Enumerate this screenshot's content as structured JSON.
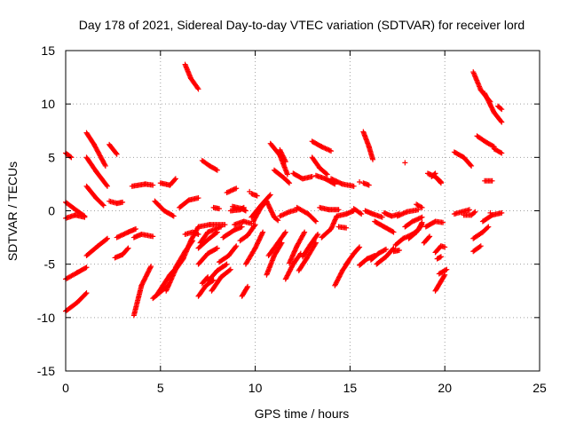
{
  "chart_data": {
    "type": "scatter",
    "title": "Day 178 of 2021, Sidereal Day-to-day VTEC variation (SDTVAR) for receiver lord",
    "xlabel": "GPS time / hours",
    "ylabel": "SDTVAR / TECUs",
    "xlim": [
      0,
      25
    ],
    "ylim": [
      -15,
      15
    ],
    "xticks": [
      0,
      5,
      10,
      15,
      20,
      25
    ],
    "yticks": [
      -15,
      -10,
      -5,
      0,
      5,
      10,
      15
    ],
    "grid": true,
    "marker": "+",
    "series_color": "#ff0000",
    "tracks": [
      {
        "x": [
          0.0,
          0.3
        ],
        "y": [
          5.4,
          5.0
        ]
      },
      {
        "x": [
          0.0,
          0.6,
          1.0
        ],
        "y": [
          0.8,
          0.0,
          -0.5
        ]
      },
      {
        "x": [
          0.0,
          0.5,
          1.0
        ],
        "y": [
          -0.7,
          -0.4,
          -0.6
        ]
      },
      {
        "x": [
          0.0,
          0.6,
          1.1
        ],
        "y": [
          -6.4,
          -5.8,
          -5.3
        ]
      },
      {
        "x": [
          0.0,
          0.6,
          1.1
        ],
        "y": [
          -9.4,
          -8.6,
          -7.7
        ]
      },
      {
        "x": [
          1.1,
          1.5,
          2.1
        ],
        "y": [
          7.3,
          6.2,
          4.2
        ]
      },
      {
        "x": [
          1.1,
          1.6,
          2.2
        ],
        "y": [
          5.0,
          3.7,
          2.3
        ]
      },
      {
        "x": [
          1.1,
          1.6,
          2.0
        ],
        "y": [
          2.3,
          1.2,
          0.5
        ]
      },
      {
        "x": [
          1.1,
          1.7,
          2.2
        ],
        "y": [
          -4.2,
          -3.3,
          -2.6
        ]
      },
      {
        "x": [
          2.3,
          2.7
        ],
        "y": [
          6.2,
          5.3
        ]
      },
      {
        "x": [
          2.3,
          2.7,
          3.0
        ],
        "y": [
          0.9,
          0.7,
          0.8
        ]
      },
      {
        "x": [
          2.6,
          3.0,
          3.3
        ],
        "y": [
          -4.4,
          -4.1,
          -3.5
        ]
      },
      {
        "x": [
          2.7,
          3.3,
          3.7
        ],
        "y": [
          -2.5,
          -2.0,
          -1.7
        ]
      },
      {
        "x": [
          3.5,
          4.2,
          4.6
        ],
        "y": [
          2.3,
          2.5,
          2.4
        ]
      },
      {
        "x": [
          3.6,
          4.0,
          4.6
        ],
        "y": [
          -2.5,
          -2.2,
          -2.4
        ]
      },
      {
        "x": [
          3.6,
          4.0,
          4.5
        ],
        "y": [
          -9.8,
          -7.0,
          -5.2
        ]
      },
      {
        "x": [
          4.6,
          5.0,
          5.4
        ],
        "y": [
          -8.2,
          -7.6,
          -7.0
        ]
      },
      {
        "x": [
          4.7,
          5.2,
          5.7
        ],
        "y": [
          0.9,
          0.0,
          -0.5
        ]
      },
      {
        "x": [
          4.8,
          5.5,
          5.8
        ],
        "y": [
          -7.9,
          -6.0,
          -5.4
        ]
      },
      {
        "x": [
          5.0,
          5.5,
          5.8
        ],
        "y": [
          2.6,
          2.4,
          3.0
        ]
      },
      {
        "x": [
          5.3,
          5.8,
          6.2
        ],
        "y": [
          -7.5,
          -5.5,
          -4.5
        ]
      },
      {
        "x": [
          5.8,
          6.3,
          6.7
        ],
        "y": [
          -5.3,
          -3.8,
          -2.8
        ]
      },
      {
        "x": [
          6.0,
          6.5,
          7.0
        ],
        "y": [
          0.3,
          1.0,
          1.2
        ]
      },
      {
        "x": [
          6.2,
          6.6,
          7.0
        ],
        "y": [
          -4.5,
          -2.8,
          -1.5
        ]
      },
      {
        "x": [
          6.3,
          6.7,
          7.0
        ],
        "y": [
          -2.2,
          -2.0,
          -2.2
        ]
      },
      {
        "x": [
          6.3,
          6.6,
          7.0
        ],
        "y": [
          13.7,
          12.4,
          11.4
        ]
      },
      {
        "x": [
          7.0,
          7.5,
          8.0
        ],
        "y": [
          -5.0,
          -4.0,
          -3.5
        ]
      },
      {
        "x": [
          7.0,
          7.5,
          8.0
        ],
        "y": [
          -3.5,
          -2.7,
          -2.0
        ]
      },
      {
        "x": [
          7.0,
          7.4,
          7.8
        ],
        "y": [
          -8.0,
          -7.0,
          -6.5
        ]
      },
      {
        "x": [
          7.1,
          7.5,
          8.2
        ],
        "y": [
          -3.0,
          -2.0,
          -1.5
        ]
      },
      {
        "x": [
          7.2,
          7.6,
          8.0
        ],
        "y": [
          4.7,
          4.2,
          3.8
        ]
      },
      {
        "x": [
          7.0,
          7.6,
          8.4
        ],
        "y": [
          -1.5,
          -1.3,
          -1.3
        ]
      },
      {
        "x": [
          7.2,
          7.5
        ],
        "y": [
          -6.8,
          -6.2
        ]
      },
      {
        "x": [
          7.5,
          8.0,
          8.5
        ],
        "y": [
          -6.6,
          -5.6,
          -5.0
        ]
      },
      {
        "x": [
          7.7,
          8.2,
          8.7
        ],
        "y": [
          -7.5,
          -6.2,
          -5.5
        ]
      },
      {
        "x": [
          7.8,
          8.1
        ],
        "y": [
          0.3,
          0.2
        ]
      },
      {
        "x": [
          8.1,
          8.6,
          9.0
        ],
        "y": [
          -4.8,
          -4.2,
          -3.3
        ]
      },
      {
        "x": [
          8.5,
          9.0
        ],
        "y": [
          1.7,
          2.1
        ]
      },
      {
        "x": [
          8.3,
          8.9,
          9.3
        ],
        "y": [
          -2.5,
          -1.8,
          -1.5
        ]
      },
      {
        "x": [
          8.7,
          9.2,
          9.4
        ],
        "y": [
          0.0,
          0.1,
          0.3
        ]
      },
      {
        "x": [
          8.8,
          9.3,
          9.5
        ],
        "y": [
          0.4,
          0.2,
          0.0
        ]
      },
      {
        "x": [
          8.9,
          9.4,
          9.8
        ],
        "y": [
          -1.3,
          -1.0,
          -1.2
        ]
      },
      {
        "x": [
          9.2,
          9.6,
          10.0
        ],
        "y": [
          -2.8,
          -2.3,
          -1.3
        ]
      },
      {
        "x": [
          9.3,
          9.6
        ],
        "y": [
          -8.0,
          -7.1
        ]
      },
      {
        "x": [
          9.5,
          10.0,
          10.4
        ],
        "y": [
          -5.0,
          -3.5,
          -2.0
        ]
      },
      {
        "x": [
          9.8,
          10.1
        ],
        "y": [
          1.6,
          1.4
        ]
      },
      {
        "x": [
          9.8,
          10.3,
          10.8
        ],
        "y": [
          -0.6,
          0.5,
          1.5
        ]
      },
      {
        "x": [
          9.9,
          10.3,
          10.6
        ],
        "y": [
          -1.0,
          0.3,
          0.9
        ]
      },
      {
        "x": [
          10.6,
          11.0,
          11.2
        ],
        "y": [
          0.9,
          -0.6,
          -0.9
        ]
      },
      {
        "x": [
          10.6,
          11.0,
          11.4
        ],
        "y": [
          -6.0,
          -4.2,
          -3.0
        ]
      },
      {
        "x": [
          10.7,
          11.2,
          11.6
        ],
        "y": [
          -4.2,
          -3.0,
          -2.0
        ]
      },
      {
        "x": [
          10.8,
          11.3,
          11.7
        ],
        "y": [
          6.3,
          5.2,
          3.4
        ]
      },
      {
        "x": [
          11.0,
          11.5,
          11.8
        ],
        "y": [
          3.8,
          3.1,
          2.6
        ]
      },
      {
        "x": [
          11.3,
          11.6
        ],
        "y": [
          5.7,
          4.6
        ]
      },
      {
        "x": [
          11.3,
          11.8,
          12.2
        ],
        "y": [
          -0.5,
          -0.1,
          0.1
        ]
      },
      {
        "x": [
          11.6,
          12.0,
          12.4
        ],
        "y": [
          -6.4,
          -5.0,
          -4.0
        ]
      },
      {
        "x": [
          11.8,
          12.2,
          12.6
        ],
        "y": [
          -4.9,
          -3.3,
          -2.0
        ]
      },
      {
        "x": [
          12.0,
          12.5,
          13.0
        ],
        "y": [
          3.5,
          3.0,
          3.2
        ]
      },
      {
        "x": [
          12.2,
          12.8,
          13.2
        ],
        "y": [
          0.3,
          -0.3,
          -1.0
        ]
      },
      {
        "x": [
          12.3,
          12.7,
          13.2
        ],
        "y": [
          -5.6,
          -4.5,
          -3.0
        ]
      },
      {
        "x": [
          12.5,
          12.9,
          13.3
        ],
        "y": [
          -4.3,
          -3.2,
          -2.2
        ]
      },
      {
        "x": [
          13.0,
          13.5,
          14.0
        ],
        "y": [
          6.5,
          6.0,
          5.6
        ]
      },
      {
        "x": [
          13.0,
          13.4,
          13.8
        ],
        "y": [
          5.0,
          4.0,
          3.4
        ]
      },
      {
        "x": [
          13.2,
          13.7,
          14.2
        ],
        "y": [
          3.3,
          3.0,
          2.5
        ]
      },
      {
        "x": [
          13.4,
          13.9,
          14.4
        ],
        "y": [
          0.3,
          0.1,
          0.1
        ]
      },
      {
        "x": [
          13.5,
          14.0,
          14.3
        ],
        "y": [
          -2.5,
          -1.7,
          -0.5
        ]
      },
      {
        "x": [
          14.0,
          14.6,
          15.2
        ],
        "y": [
          3.0,
          2.5,
          2.3
        ]
      },
      {
        "x": [
          14.3,
          14.8,
          15.2
        ],
        "y": [
          -0.5,
          -0.3,
          0.0
        ]
      },
      {
        "x": [
          14.4,
          14.8
        ],
        "y": [
          -1.5,
          -1.6
        ]
      },
      {
        "x": [
          14.2,
          14.6,
          14.9
        ],
        "y": [
          -7.0,
          -5.6,
          -4.8
        ]
      },
      {
        "x": [
          14.8,
          15.2,
          15.5
        ],
        "y": [
          -5.0,
          -4.0,
          -3.4
        ]
      },
      {
        "x": [
          15.2,
          15.6
        ],
        "y": [
          0.2,
          -0.3
        ]
      },
      {
        "x": [
          15.5,
          15.9,
          16.3
        ],
        "y": [
          -5.1,
          -4.5,
          -4.2
        ]
      },
      {
        "x": [
          15.7,
          16.0,
          16.2
        ],
        "y": [
          7.4,
          6.0,
          4.8
        ]
      },
      {
        "x": [
          15.7,
          16.0
        ],
        "y": [
          2.6,
          2.4
        ]
      },
      {
        "x": [
          15.8,
          16.2,
          16.7
        ],
        "y": [
          0.0,
          -0.3,
          -0.6
        ]
      },
      {
        "x": [
          16.1,
          16.5,
          16.9
        ],
        "y": [
          -4.6,
          -4.0,
          -3.6
        ]
      },
      {
        "x": [
          16.3,
          16.8,
          17.3
        ],
        "y": [
          -1.0,
          -1.5,
          -2.0
        ]
      },
      {
        "x": [
          16.4,
          16.9,
          17.3
        ],
        "y": [
          -5.0,
          -4.3,
          -3.5
        ]
      },
      {
        "x": [
          16.8,
          17.2,
          17.6
        ],
        "y": [
          -0.2,
          -0.5,
          -0.3
        ]
      },
      {
        "x": [
          17.3,
          17.6
        ],
        "y": [
          -3.8,
          -3.7
        ]
      },
      {
        "x": [
          17.4,
          17.8,
          18.3
        ],
        "y": [
          -3.2,
          -2.6,
          -2.2
        ]
      },
      {
        "x": [
          17.5,
          18.0,
          18.6
        ],
        "y": [
          -0.5,
          -0.1,
          0.1
        ]
      },
      {
        "x": [
          17.9,
          18.3,
          18.8
        ],
        "y": [
          -1.5,
          -1.0,
          -0.6
        ]
      },
      {
        "x": [
          18.1,
          18.5,
          18.8
        ],
        "y": [
          -2.6,
          -2.0,
          -1.3
        ]
      },
      {
        "x": [
          18.2,
          18.6,
          18.8
        ],
        "y": [
          -2.3,
          -1.8,
          -1.1
        ]
      },
      {
        "x": [
          18.5,
          18.8
        ],
        "y": [
          0.6,
          0.3
        ]
      },
      {
        "x": [
          18.9,
          19.2
        ],
        "y": [
          -3.0,
          -2.4
        ]
      },
      {
        "x": [
          19.0,
          19.5,
          19.9
        ],
        "y": [
          -1.5,
          -1.0,
          -1.1
        ]
      },
      {
        "x": [
          19.1,
          19.5,
          19.8
        ],
        "y": [
          3.5,
          3.2,
          2.7
        ]
      },
      {
        "x": [
          19.3,
          19.5
        ],
        "y": [
          3.2,
          3.5
        ]
      },
      {
        "x": [
          19.5,
          19.8
        ],
        "y": [
          3.2,
          2.6
        ]
      },
      {
        "x": [
          19.5,
          19.8,
          20.0
        ],
        "y": [
          -3.9,
          -3.3,
          -3.4
        ]
      },
      {
        "x": [
          19.5,
          19.8,
          20.0
        ],
        "y": [
          -7.5,
          -6.6,
          -6.0
        ]
      },
      {
        "x": [
          19.6,
          19.8
        ],
        "y": [
          -4.5,
          -4.3
        ]
      },
      {
        "x": [
          19.7,
          20.1
        ],
        "y": [
          -5.9,
          -5.5
        ]
      },
      {
        "x": [
          20.5,
          21.0,
          21.4
        ],
        "y": [
          5.5,
          5.0,
          4.2
        ]
      },
      {
        "x": [
          20.5,
          20.9,
          21.3
        ],
        "y": [
          -0.3,
          -0.1,
          0.1
        ]
      },
      {
        "x": [
          21.0,
          21.4,
          21.6
        ],
        "y": [
          -0.4,
          -0.4,
          -0.1
        ]
      },
      {
        "x": [
          21.5,
          22.0,
          22.3
        ],
        "y": [
          -2.6,
          -2.0,
          -1.5
        ]
      },
      {
        "x": [
          21.5,
          21.9,
          22.4
        ],
        "y": [
          13.0,
          11.3,
          10.2
        ]
      },
      {
        "x": [
          21.7,
          22.2,
          22.6
        ],
        "y": [
          7.0,
          6.4,
          6.0
        ]
      },
      {
        "x": [
          21.5,
          21.9
        ],
        "y": [
          -3.8,
          -3.3
        ]
      },
      {
        "x": [
          22.0,
          22.5,
          23.0
        ],
        "y": [
          -1.0,
          -0.4,
          -0.2
        ]
      },
      {
        "x": [
          22.1,
          22.6,
          23.0
        ],
        "y": [
          11.0,
          9.2,
          8.3
        ]
      },
      {
        "x": [
          22.1,
          22.5
        ],
        "y": [
          2.8,
          2.8
        ]
      },
      {
        "x": [
          22.6,
          23.0
        ],
        "y": [
          5.8,
          5.4
        ]
      },
      {
        "x": [
          22.8,
          23.0
        ],
        "y": [
          9.8,
          9.5
        ]
      }
    ],
    "isolated_points": [
      {
        "x": 15.5,
        "y": 2.7
      },
      {
        "x": 17.9,
        "y": 4.5
      },
      {
        "x": 9.7,
        "y": 1.8
      },
      {
        "x": 22.4,
        "y": -0.2
      }
    ]
  }
}
